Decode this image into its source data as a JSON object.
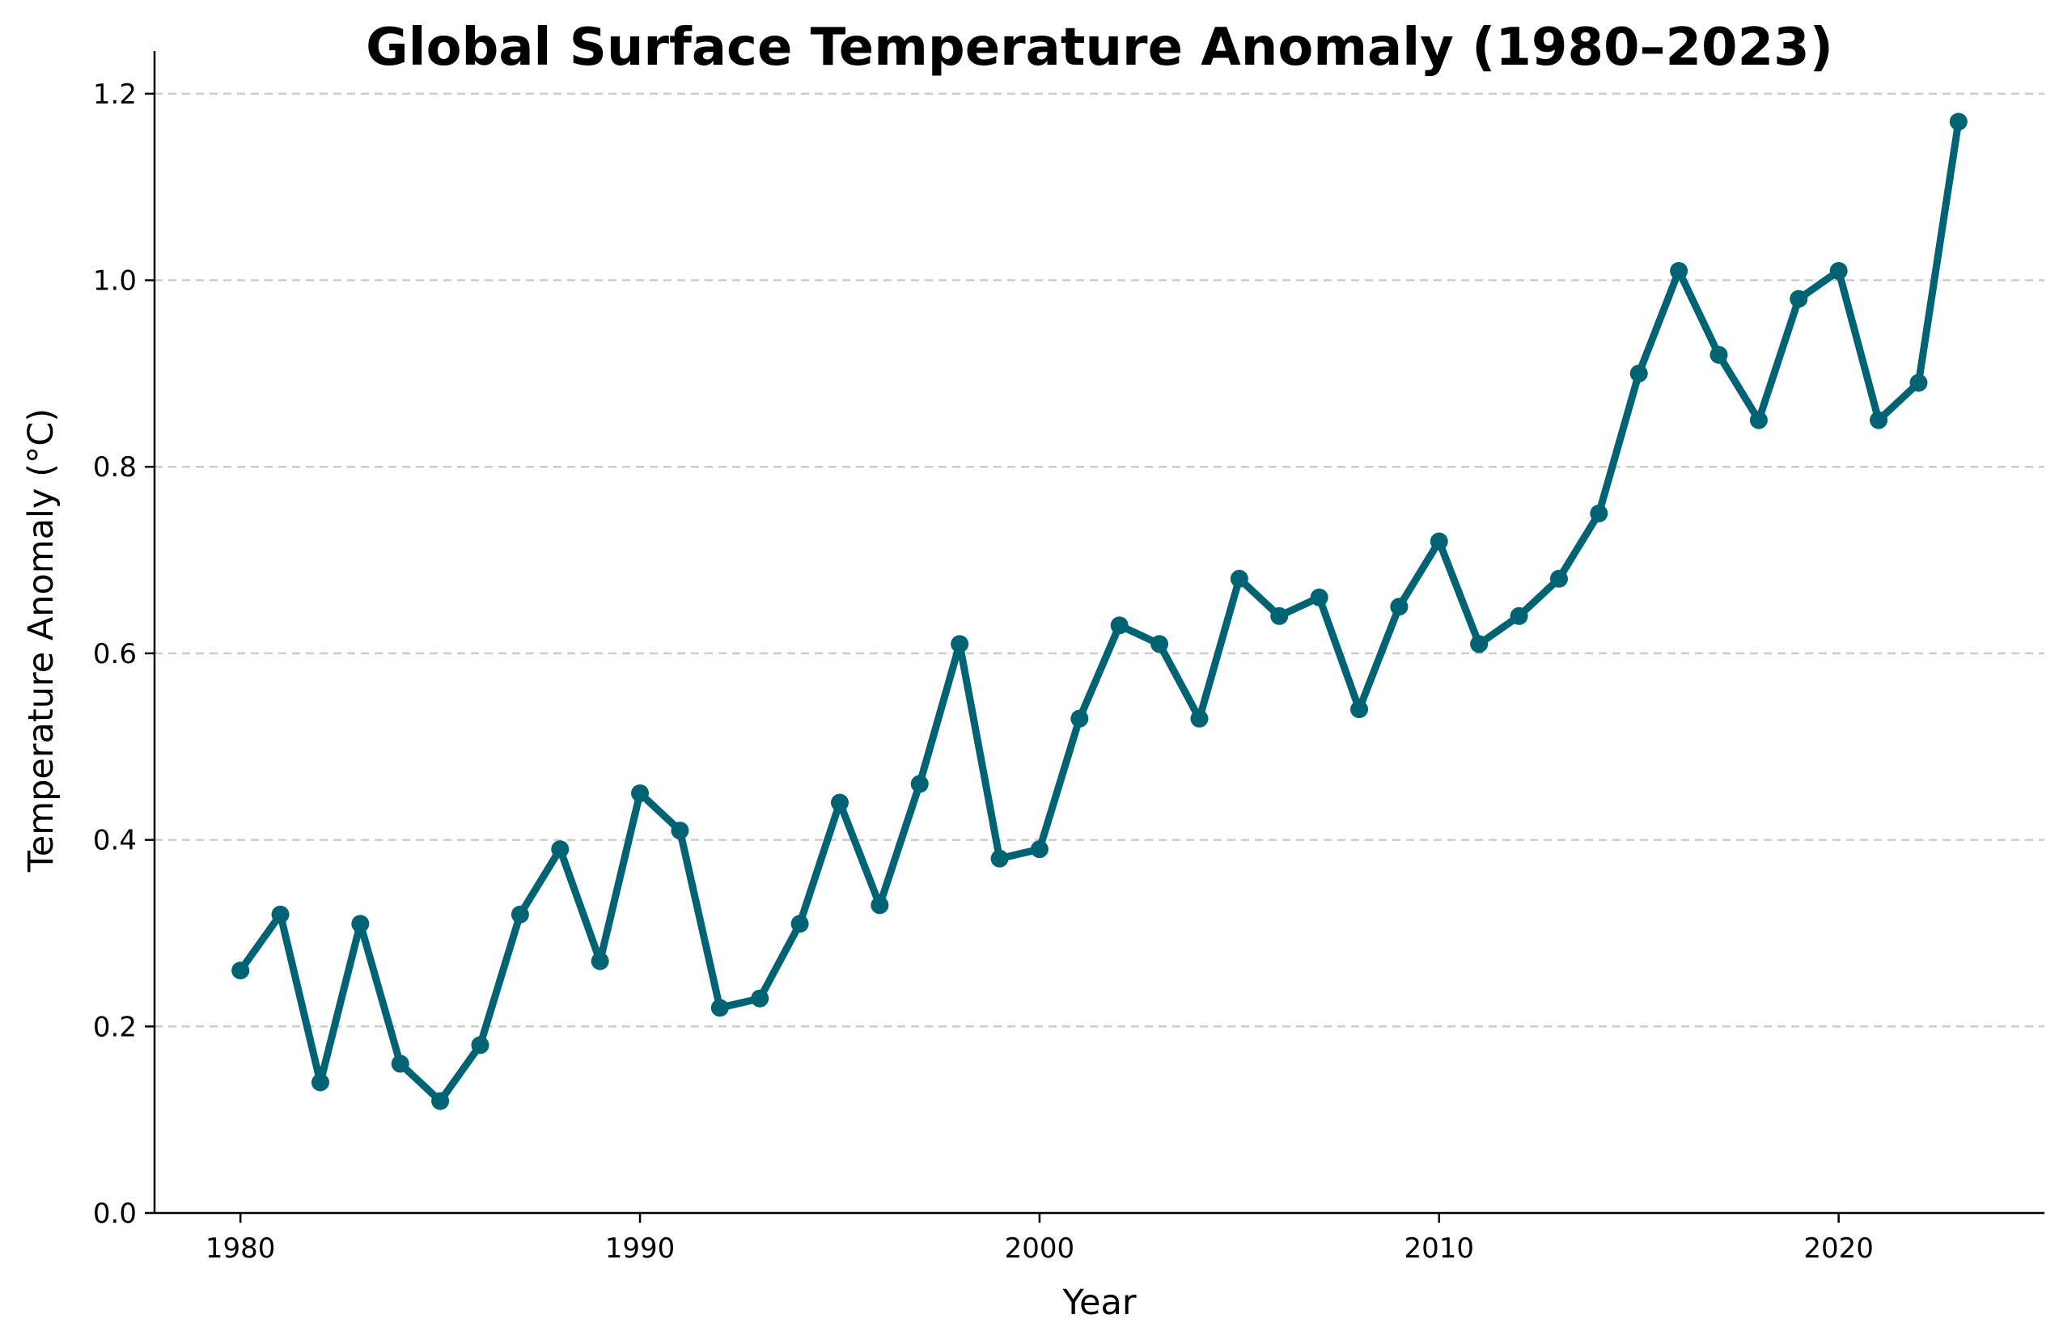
{
  "chart_data": {
    "type": "line",
    "title": "Global Surface Temperature Anomaly (1980–2023)",
    "xlabel": "Year",
    "ylabel": "Temperature Anomaly (°C)",
    "xlim": [
      1977.85,
      2025.15
    ],
    "ylim": [
      0.0,
      1.2285
    ],
    "xticks": [
      1980,
      1990,
      2000,
      2010,
      2020
    ],
    "xtick_labels": [
      "1980",
      "1990",
      "2000",
      "2010",
      "2020"
    ],
    "yticks": [
      0.0,
      0.2,
      0.4,
      0.6,
      0.8,
      1.0,
      1.2
    ],
    "ytick_labels": [
      "0.0",
      "0.2",
      "0.4",
      "0.6",
      "0.8",
      "1.0",
      "1.2"
    ],
    "grid": "horizontal dashed",
    "legend": "none",
    "line_color": "#006374",
    "x": [
      1980,
      1981,
      1982,
      1983,
      1984,
      1985,
      1986,
      1987,
      1988,
      1989,
      1990,
      1991,
      1992,
      1993,
      1994,
      1995,
      1996,
      1997,
      1998,
      1999,
      2000,
      2001,
      2002,
      2003,
      2004,
      2005,
      2006,
      2007,
      2008,
      2009,
      2010,
      2011,
      2012,
      2013,
      2014,
      2015,
      2016,
      2017,
      2018,
      2019,
      2020,
      2021,
      2022,
      2023
    ],
    "series": [
      {
        "values": [
          0.26,
          0.32,
          0.14,
          0.31,
          0.16,
          0.12,
          0.18,
          0.32,
          0.39,
          0.27,
          0.45,
          0.41,
          0.22,
          0.23,
          0.31,
          0.44,
          0.33,
          0.46,
          0.61,
          0.38,
          0.39,
          0.53,
          0.63,
          0.61,
          0.53,
          0.68,
          0.64,
          0.66,
          0.54,
          0.65,
          0.72,
          0.61,
          0.64,
          0.68,
          0.75,
          0.9,
          1.01,
          0.92,
          0.85,
          0.98,
          1.01,
          0.85,
          0.89,
          1.17
        ]
      }
    ]
  }
}
